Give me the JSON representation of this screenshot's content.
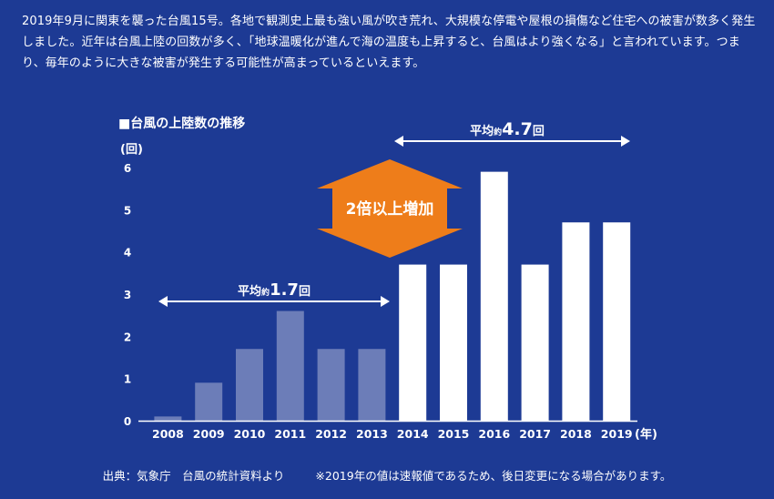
{
  "intro_text": "2019年9月に関東を襲った台風15号。各地で観測史上最も強い風が吹き荒れ、大規模な停電や屋根の損傷など住宅への被害が数多く発生しました。近年は台風上陸の回数が多く、「地球温暖化が進んで海の温度も上昇すると、台風はより強くなる」と言われています。つまり、毎年のように大きな被害が発生する可能性が高まっているといえます。",
  "chart_data": {
    "type": "bar",
    "title": "■台風の上陸数の推移",
    "ylabel": "(回)",
    "xlabel": "(年)",
    "ylim": [
      0,
      6
    ],
    "yticks": [
      "0",
      "1",
      "2",
      "3",
      "4",
      "5",
      "6"
    ],
    "categories": [
      "2008",
      "2009",
      "2010",
      "2011",
      "2012",
      "2013",
      "2014",
      "2015",
      "2016",
      "2017",
      "2018",
      "2019"
    ],
    "values": [
      0.1,
      0.9,
      1.7,
      2.6,
      1.7,
      1.7,
      3.7,
      3.7,
      5.9,
      3.7,
      4.7,
      4.7
    ],
    "colors": {
      "early": "#6c7db8",
      "recent": "#ffffff",
      "callout": "#ee7d1a",
      "callout_text": "#ffffff"
    },
    "annotations": {
      "avg_early": {
        "prefix": "平均",
        "small": "約",
        "value": "1.7",
        "unit": "回"
      },
      "avg_recent": {
        "prefix": "平均",
        "small": "約",
        "value": "4.7",
        "unit": "回"
      },
      "callout": "2倍以上増加"
    }
  },
  "footer": {
    "source": "出典：気象庁　台風の統計資料より",
    "note": "※2019年の値は速報値であるため、後日変更になる場合があります。"
  }
}
